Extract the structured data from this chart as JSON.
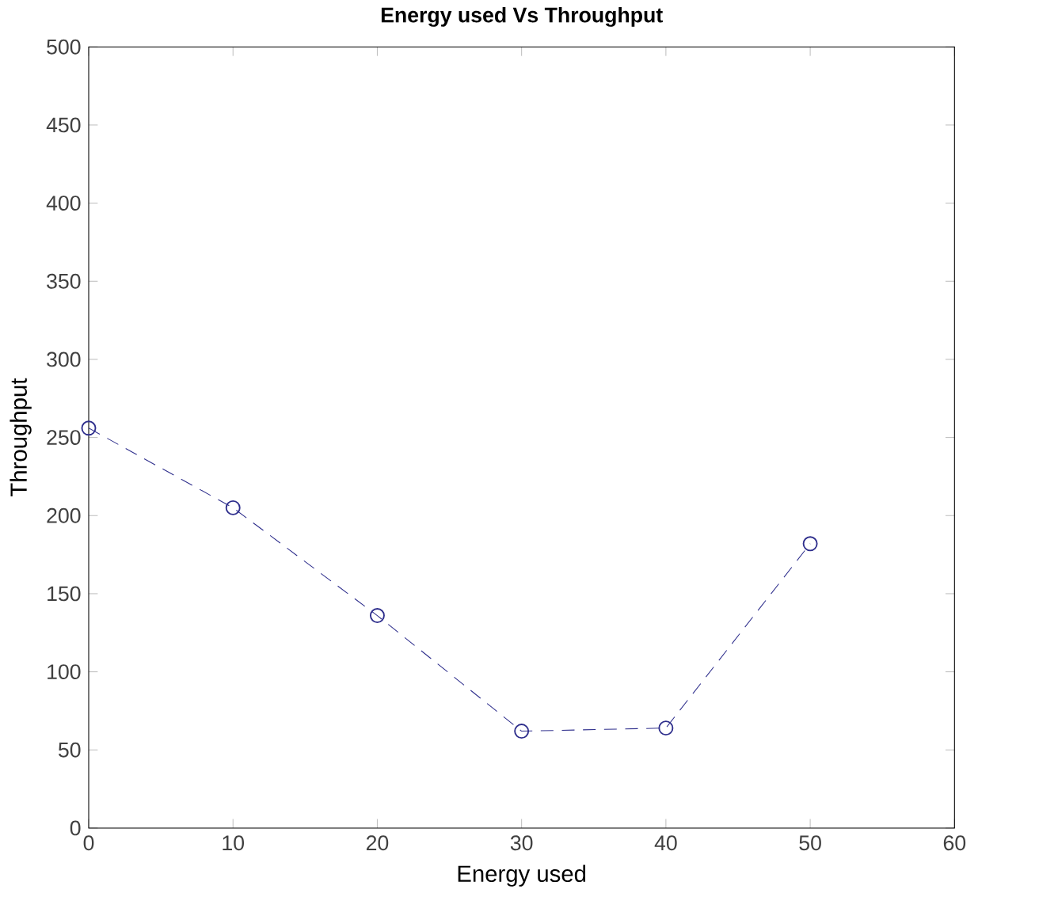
{
  "chart_data": {
    "type": "line",
    "title": "Energy used Vs Throughput",
    "xlabel": "Energy used",
    "ylabel": "Throughput",
    "x": [
      0,
      10,
      20,
      30,
      40,
      50
    ],
    "series": [
      {
        "color": "#2e2e8c",
        "values": [
          256,
          205,
          136,
          62,
          64,
          182
        ]
      }
    ],
    "xlim": [
      0,
      60
    ],
    "xticks": [
      0,
      10,
      20,
      30,
      40,
      50,
      60
    ],
    "ylim": [
      0,
      500
    ],
    "yticks": [
      0,
      50,
      100,
      150,
      200,
      250,
      300,
      350,
      400,
      450,
      500
    ],
    "marker": "circle",
    "line_style": "dashed"
  }
}
